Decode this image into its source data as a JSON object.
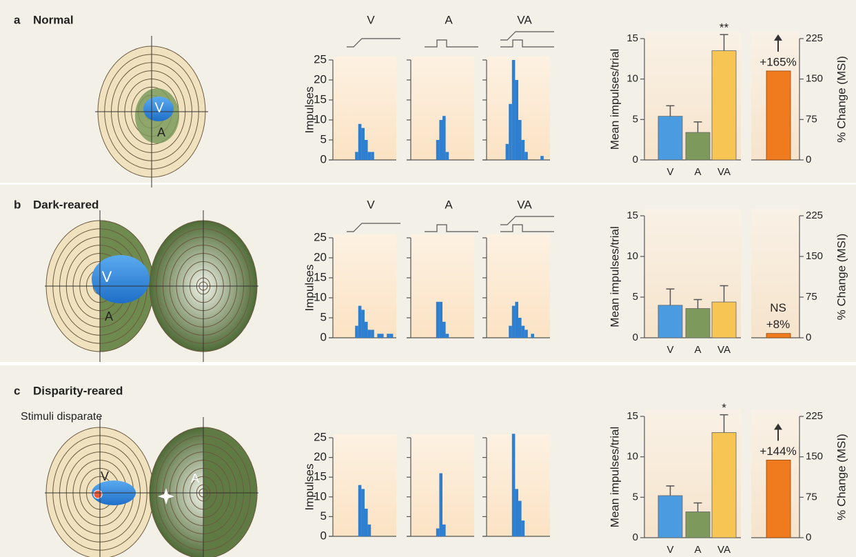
{
  "panels": [
    {
      "label": "a",
      "title": "Normal",
      "diagram_labels": [
        "V",
        "A"
      ]
    },
    {
      "label": "b",
      "title": "Dark-reared",
      "diagram_labels": [
        "V",
        "A"
      ]
    },
    {
      "label": "c",
      "title": "Disparity-reared",
      "subtitle": "Stimuli disparate",
      "diagram_labels": [
        "V",
        "A"
      ]
    }
  ],
  "chart_data": [
    {
      "type": "histogram",
      "ylabel": "Impulses",
      "ylim": [
        0,
        25
      ],
      "yticks": [
        0,
        5,
        10,
        15,
        20,
        25
      ],
      "color": "#2f7fd0",
      "subplots": [
        {
          "title": "V",
          "values": [
            0,
            0,
            0,
            0,
            0,
            0,
            0,
            2,
            9,
            8,
            5,
            2,
            2,
            0,
            0,
            0,
            0,
            0,
            0,
            0
          ]
        },
        {
          "title": "A",
          "values": [
            0,
            0,
            0,
            0,
            0,
            0,
            0,
            0,
            5,
            10,
            11,
            2,
            0,
            0,
            0,
            0,
            0,
            0,
            0,
            0
          ]
        },
        {
          "title": "VA",
          "values": [
            0,
            0,
            0,
            0,
            0,
            0,
            4,
            14,
            25,
            20,
            10,
            5,
            2,
            0,
            0,
            0,
            0,
            1,
            0,
            0
          ]
        }
      ]
    },
    {
      "type": "bar",
      "ylabel": "Mean impulses/trial",
      "ylim": [
        0,
        15
      ],
      "yticks": [
        0,
        5,
        10,
        15
      ],
      "categories": [
        "V",
        "A",
        "VA"
      ],
      "values": [
        5.4,
        3.4,
        13.5
      ],
      "errors": [
        1.3,
        1.3,
        2
      ],
      "colors": [
        "#4a9be0",
        "#7d9a5c",
        "#f7c553"
      ],
      "annotations": [
        null,
        null,
        "**"
      ],
      "msi": {
        "value": 165,
        "value_label": "+165%",
        "color": "#f07a1e",
        "arrow": true,
        "y2label": "% Change (MSI)",
        "y2lim": [
          0,
          225
        ],
        "y2ticks": [
          0,
          75,
          150,
          225
        ]
      }
    },
    {
      "type": "histogram",
      "ylabel": "Impulses",
      "ylim": [
        0,
        25
      ],
      "yticks": [
        0,
        5,
        10,
        15,
        20,
        25
      ],
      "color": "#2f7fd0",
      "subplots": [
        {
          "title": "V",
          "values": [
            0,
            0,
            0,
            0,
            0,
            0,
            0,
            3,
            8,
            7,
            4,
            2,
            2,
            0,
            1,
            1,
            0,
            1,
            1,
            0
          ]
        },
        {
          "title": "A",
          "values": [
            0,
            0,
            0,
            0,
            0,
            0,
            0,
            0,
            9,
            9,
            4,
            1,
            0,
            0,
            0,
            0,
            0,
            0,
            0,
            0
          ]
        },
        {
          "title": "VA",
          "values": [
            0,
            0,
            0,
            0,
            0,
            0,
            0,
            3,
            8,
            9,
            5,
            3,
            2,
            0,
            1,
            0,
            0,
            0,
            0,
            0
          ]
        }
      ]
    },
    {
      "type": "bar",
      "ylabel": "Mean impulses/trial",
      "ylim": [
        0,
        15
      ],
      "yticks": [
        0,
        5,
        10,
        15
      ],
      "categories": [
        "V",
        "A",
        "VA"
      ],
      "values": [
        4,
        3.6,
        4.4
      ],
      "errors": [
        2,
        1.1,
        2
      ],
      "colors": [
        "#4a9be0",
        "#7d9a5c",
        "#f7c553"
      ],
      "msi": {
        "value": 8,
        "value_label": "+8%",
        "note": "NS",
        "color": "#f07a1e",
        "arrow": false,
        "y2label": "% Change (MSI)",
        "y2lim": [
          0,
          225
        ],
        "y2ticks": [
          0,
          75,
          150,
          225
        ]
      }
    },
    {
      "type": "histogram",
      "ylabel": "Impulses",
      "ylim": [
        0,
        25
      ],
      "yticks": [
        0,
        5,
        10,
        15,
        20,
        25
      ],
      "color": "#2f7fd0",
      "subplots": [
        {
          "values": [
            0,
            0,
            0,
            0,
            0,
            0,
            0,
            0,
            13,
            12,
            7,
            3,
            0,
            0,
            0,
            0,
            0,
            0,
            0,
            0
          ]
        },
        {
          "values": [
            0,
            0,
            0,
            0,
            0,
            0,
            0,
            0,
            2,
            16,
            3,
            0,
            0,
            0,
            0,
            0,
            0,
            0,
            0,
            0
          ]
        },
        {
          "values": [
            0,
            0,
            0,
            0,
            0,
            0,
            0,
            0,
            26,
            12,
            9,
            4,
            0,
            0,
            0,
            0,
            0,
            0,
            0,
            0
          ]
        }
      ]
    },
    {
      "type": "bar",
      "ylabel": "Mean impulses/trial",
      "ylim": [
        0,
        15
      ],
      "yticks": [
        0,
        5,
        10,
        15
      ],
      "categories": [
        "V",
        "A",
        "VA"
      ],
      "values": [
        5.2,
        3.2,
        13
      ],
      "errors": [
        1.2,
        1.1,
        2.2
      ],
      "colors": [
        "#4a9be0",
        "#7d9a5c",
        "#f7c553"
      ],
      "annotations": [
        null,
        null,
        "*"
      ],
      "msi": {
        "value": 144,
        "value_label": "+144%",
        "color": "#f07a1e",
        "arrow": true,
        "y2label": "% Change (MSI)",
        "y2lim": [
          0,
          225
        ],
        "y2ticks": [
          0,
          75,
          150,
          225
        ]
      }
    }
  ]
}
